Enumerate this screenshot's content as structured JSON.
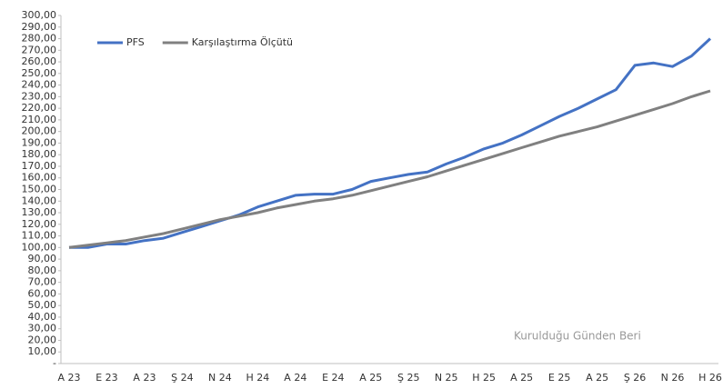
{
  "chart_data": {
    "type": "line",
    "categories": [
      "A 23",
      null,
      "E 23",
      null,
      "A 23",
      null,
      "Ş 24",
      null,
      "N 24",
      null,
      "H 24",
      null,
      "A 24",
      null,
      "E 24",
      null,
      "A 25",
      null,
      "Ş 25",
      null,
      "N 25",
      null,
      "H 25",
      null,
      "A 25",
      null,
      "E 25",
      null,
      "A 25",
      null,
      "Ş 26",
      null,
      "N 26",
      null,
      "H 26"
    ],
    "series": [
      {
        "name": "PFS",
        "color": "#4472c4",
        "values": [
          100,
          100,
          103,
          103,
          106,
          108,
          113,
          118,
          123,
          128,
          135,
          140,
          145,
          146,
          146,
          150,
          157,
          160,
          163,
          165,
          172,
          178,
          185,
          190,
          197,
          205,
          213,
          220,
          228,
          236,
          257,
          259,
          256,
          265,
          280
        ]
      },
      {
        "name": "Karşılaştırma Ölçütü",
        "color": "#808080",
        "values": [
          100,
          102,
          104,
          106,
          109,
          112,
          116,
          120,
          124,
          127,
          130,
          134,
          137,
          140,
          142,
          145,
          149,
          153,
          157,
          161,
          166,
          171,
          176,
          181,
          186,
          191,
          196,
          200,
          204,
          209,
          214,
          219,
          224,
          230,
          235
        ]
      }
    ],
    "ylim": [
      0,
      300
    ],
    "yticks": [
      {
        "value": 0,
        "label": "-"
      },
      {
        "value": 10,
        "label": "10,00"
      },
      {
        "value": 20,
        "label": "20,00"
      },
      {
        "value": 30,
        "label": "30,00"
      },
      {
        "value": 40,
        "label": "40,00"
      },
      {
        "value": 50,
        "label": "50,00"
      },
      {
        "value": 60,
        "label": "60,00"
      },
      {
        "value": 70,
        "label": "70,00"
      },
      {
        "value": 80,
        "label": "80,00"
      },
      {
        "value": 90,
        "label": "90,00"
      },
      {
        "value": 100,
        "label": "100,00"
      },
      {
        "value": 110,
        "label": "110,00"
      },
      {
        "value": 120,
        "label": "120,00"
      },
      {
        "value": 130,
        "label": "130,00"
      },
      {
        "value": 140,
        "label": "140,00"
      },
      {
        "value": 150,
        "label": "150,00"
      },
      {
        "value": 160,
        "label": "160,00"
      },
      {
        "value": 170,
        "label": "170,00"
      },
      {
        "value": 180,
        "label": "180,00"
      },
      {
        "value": 190,
        "label": "190,00"
      },
      {
        "value": 200,
        "label": "200,00"
      },
      {
        "value": 210,
        "label": "210,00"
      },
      {
        "value": 220,
        "label": "220,00"
      },
      {
        "value": 230,
        "label": "230,00"
      },
      {
        "value": 240,
        "label": "240,00"
      },
      {
        "value": 250,
        "label": "250,00"
      },
      {
        "value": 260,
        "label": "260,00"
      },
      {
        "value": 270,
        "label": "270,00"
      },
      {
        "value": 280,
        "label": "280,00"
      },
      {
        "value": 290,
        "label": "290,00"
      },
      {
        "value": 300,
        "label": "300,00"
      }
    ],
    "grid": false,
    "legend": "top-left",
    "annotation": "Kurulduğu Günden Beri"
  }
}
